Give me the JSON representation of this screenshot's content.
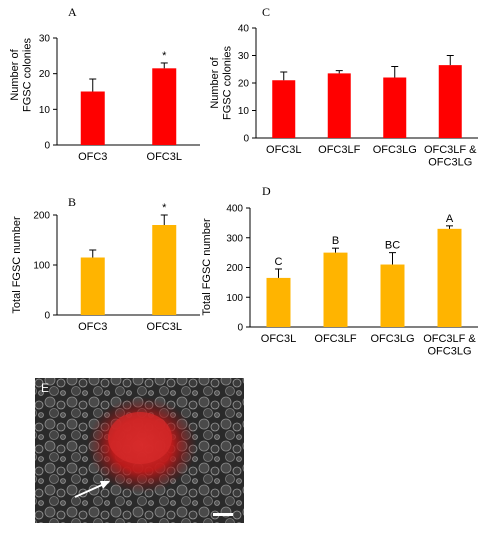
{
  "chart_data": [
    {
      "panel": "A",
      "type": "bar",
      "ylabel": "Number of FGSC colonies",
      "ylim": [
        0,
        30
      ],
      "yticks": [
        0,
        10,
        20,
        30
      ],
      "categories": [
        "OFC3",
        "OFC3L"
      ],
      "values": [
        15,
        21.5
      ],
      "errors": [
        3.5,
        1.5
      ],
      "annotations": [
        "",
        "*"
      ],
      "color": "#ff0000"
    },
    {
      "panel": "C",
      "type": "bar",
      "ylabel": "Number of FGSC colonies",
      "ylim": [
        0,
        40
      ],
      "yticks": [
        0,
        10,
        20,
        30,
        40
      ],
      "categories": [
        "OFC3L",
        "OFC3LF",
        "OFC3LG",
        "OFC3LF & OFC3LG"
      ],
      "values": [
        21,
        23.5,
        22,
        26.5
      ],
      "errors": [
        3,
        1,
        4,
        3.5
      ],
      "annotations": [
        "",
        "",
        "",
        ""
      ],
      "color": "#ff0000"
    },
    {
      "panel": "B",
      "type": "bar",
      "ylabel": "Total FGSC number",
      "ylim": [
        0,
        200
      ],
      "yticks": [
        0,
        100,
        200
      ],
      "categories": [
        "OFC3",
        "OFC3L"
      ],
      "values": [
        115,
        180
      ],
      "errors": [
        15,
        20
      ],
      "annotations": [
        "",
        "*"
      ],
      "color": "#ffb400"
    },
    {
      "panel": "D",
      "type": "bar",
      "ylabel": "Total FGSC number",
      "ylim": [
        0,
        400
      ],
      "yticks": [
        0,
        100,
        200,
        300,
        400
      ],
      "categories": [
        "OFC3L",
        "OFC3LF",
        "OFC3LG",
        "OFC3LF & OFC3LG"
      ],
      "values": [
        165,
        250,
        210,
        330
      ],
      "errors": [
        30,
        15,
        40,
        10
      ],
      "annotations": [
        "C",
        "B",
        "BC",
        "A"
      ],
      "color": "#ffb400"
    }
  ],
  "micrograph": {
    "label": "E"
  }
}
